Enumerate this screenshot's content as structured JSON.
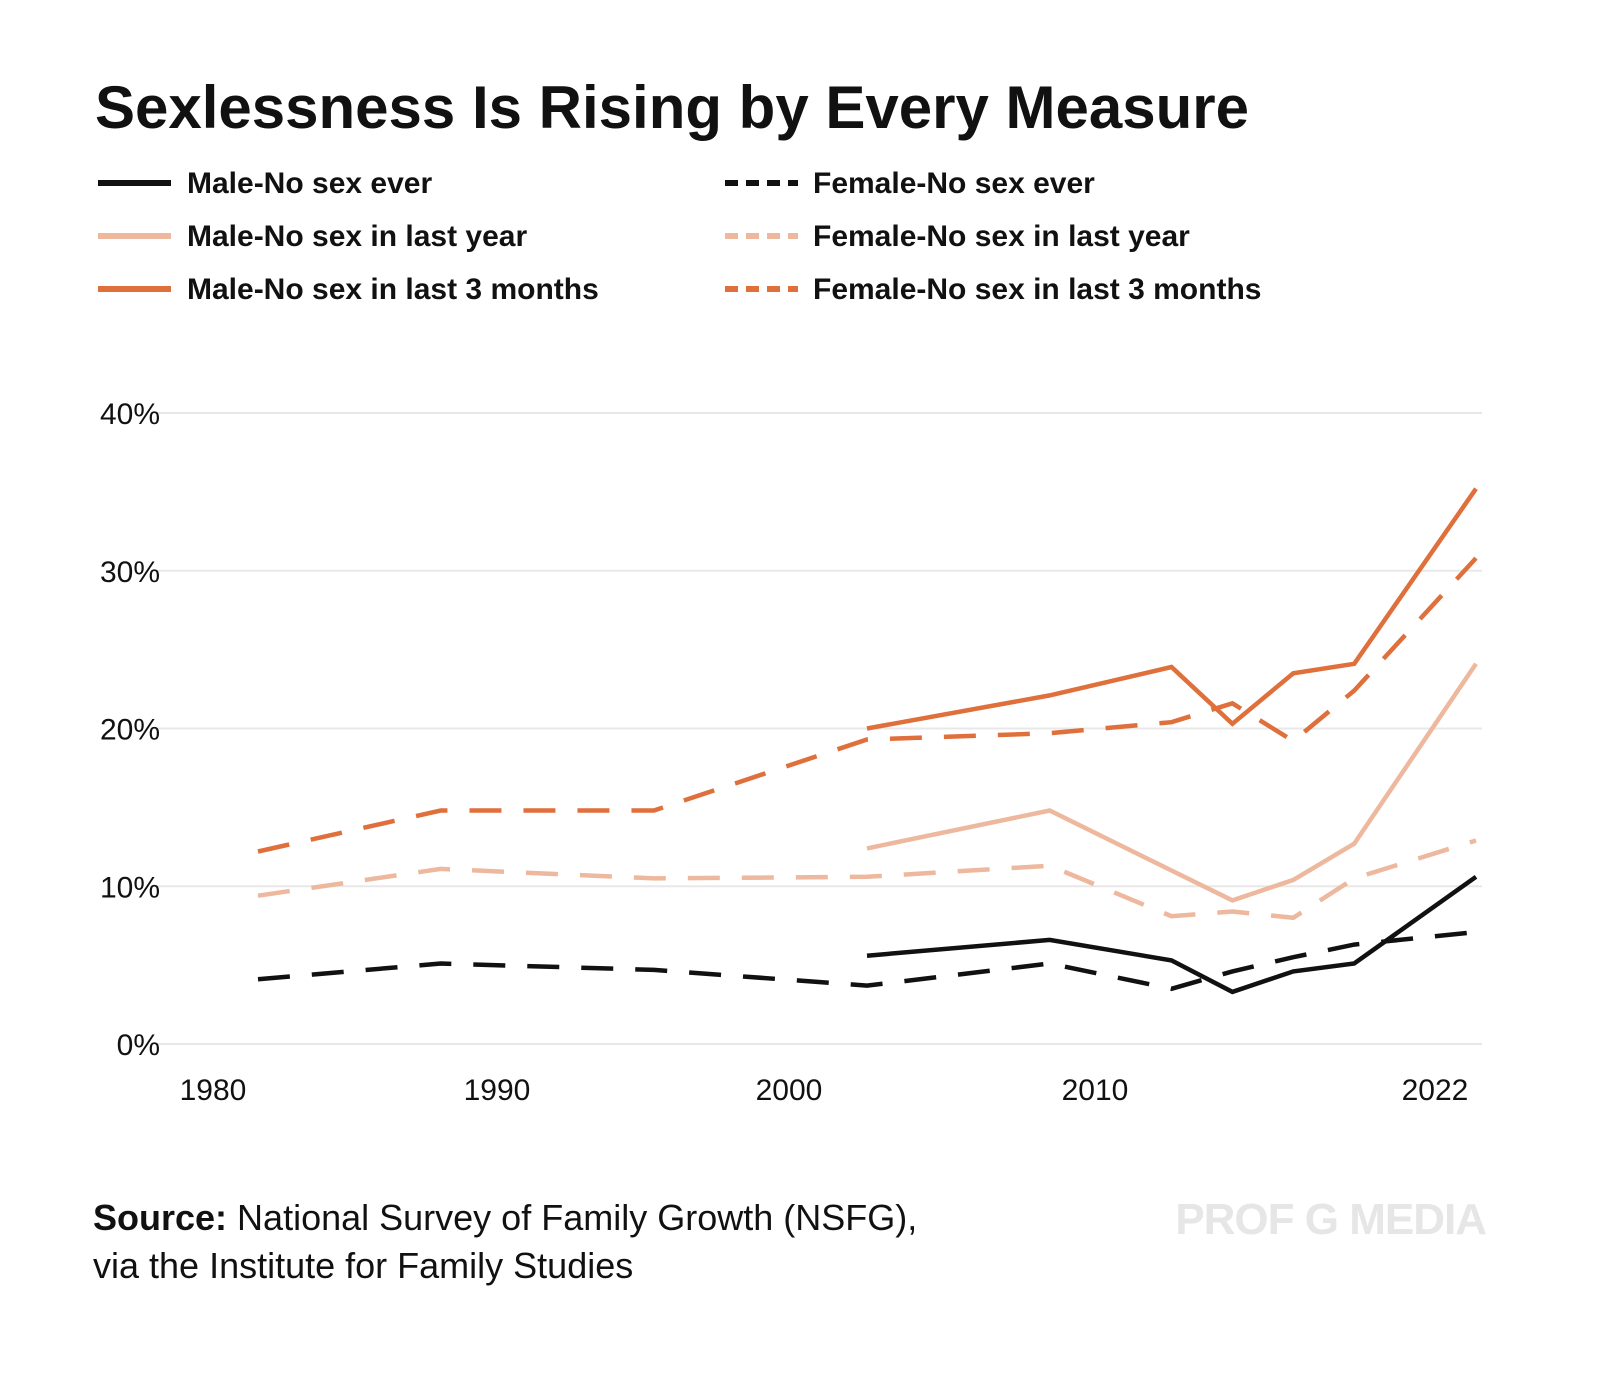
{
  "chart_data": {
    "type": "line",
    "title": "Sexlessness Is Rising by Every Measure",
    "xlabel": "",
    "ylabel": "",
    "xlim": [
      1982,
      2022
    ],
    "ylim": [
      0,
      40
    ],
    "y_ticks": [
      "0%",
      "10%",
      "20%",
      "30%",
      "40%"
    ],
    "y_tick_values": [
      0,
      10,
      20,
      30,
      40
    ],
    "x_ticks": [
      "1980",
      "1990",
      "2000",
      "2010",
      "2022"
    ],
    "x_tick_values": [
      1980,
      1990,
      2000,
      2010,
      2022
    ],
    "grid": true,
    "legend_position": "top",
    "series": [
      {
        "name": "Male-No sex ever",
        "color": "#111111",
        "dash": false,
        "x": [
          2002,
          2008,
          2012,
          2014,
          2016,
          2018,
          2022
        ],
        "y": [
          5.6,
          6.6,
          5.3,
          3.3,
          4.6,
          5.1,
          10.6
        ]
      },
      {
        "name": "Female-No sex ever",
        "color": "#111111",
        "dash": true,
        "x": [
          1982,
          1988,
          1995,
          2002,
          2008,
          2012,
          2014,
          2016,
          2018,
          2022
        ],
        "y": [
          4.1,
          5.1,
          4.7,
          3.7,
          5.1,
          3.5,
          4.6,
          5.5,
          6.3,
          7.1
        ]
      },
      {
        "name": "Male-No sex in last year",
        "color": "#EDB89D",
        "dash": false,
        "x": [
          2002,
          2008,
          2012,
          2014,
          2016,
          2018,
          2022
        ],
        "y": [
          12.4,
          14.8,
          11.0,
          9.1,
          10.4,
          12.7,
          24.1
        ]
      },
      {
        "name": "Female-No sex in last year",
        "color": "#EDB89D",
        "dash": true,
        "x": [
          1982,
          1988,
          1995,
          2002,
          2008,
          2012,
          2014,
          2016,
          2018,
          2022
        ],
        "y": [
          9.4,
          11.1,
          10.5,
          10.6,
          11.3,
          8.1,
          8.4,
          8.0,
          10.5,
          12.9
        ]
      },
      {
        "name": "Male-No sex in last 3 months",
        "color": "#DF6F3B",
        "dash": false,
        "x": [
          2002,
          2008,
          2012,
          2014,
          2016,
          2018,
          2022
        ],
        "y": [
          20.0,
          22.1,
          23.9,
          20.3,
          23.5,
          24.1,
          35.2
        ]
      },
      {
        "name": "Female-No sex in last 3 months",
        "color": "#DF6F3B",
        "dash": true,
        "x": [
          1982,
          1988,
          1995,
          2002,
          2008,
          2012,
          2014,
          2016,
          2018,
          2022
        ],
        "y": [
          12.2,
          14.8,
          14.8,
          19.3,
          19.7,
          20.4,
          21.6,
          19.2,
          22.4,
          30.8
        ]
      }
    ]
  },
  "source": {
    "label": "Source:",
    "line1": " National Survey of Family Growth (NSFG),",
    "line2": "via the Institute for Family Studies"
  },
  "watermark": "PROF G MEDIA"
}
